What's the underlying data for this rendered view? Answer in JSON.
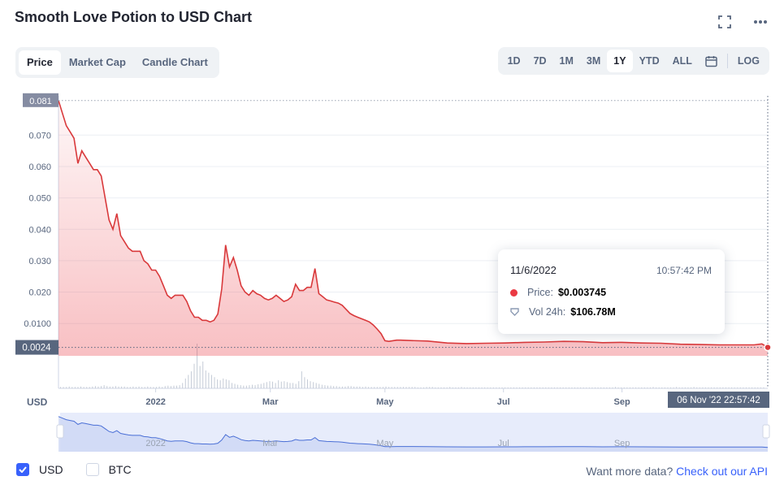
{
  "title": "Smooth Love Potion to USD Chart",
  "icons": {
    "fullscreen": "fullscreen-icon",
    "more": "more-icon",
    "calendar": "calendar-icon"
  },
  "view_tabs": [
    {
      "label": "Price",
      "active": true
    },
    {
      "label": "Market Cap",
      "active": false
    },
    {
      "label": "Candle Chart",
      "active": false
    }
  ],
  "range_tabs": [
    {
      "label": "1D",
      "active": false
    },
    {
      "label": "7D",
      "active": false
    },
    {
      "label": "1M",
      "active": false
    },
    {
      "label": "3M",
      "active": false
    },
    {
      "label": "1Y",
      "active": true
    },
    {
      "label": "YTD",
      "active": false
    },
    {
      "label": "ALL",
      "active": false
    }
  ],
  "log_label": "LOG",
  "tooltip": {
    "date": "11/6/2022",
    "time": "10:57:42 PM",
    "price_label": "Price:",
    "price_value": "$0.003745",
    "volume_label": "Vol 24h:",
    "volume_value": "$106.78M"
  },
  "bottom": {
    "currencies": [
      {
        "label": "USD",
        "checked": true
      },
      {
        "label": "BTC",
        "checked": false
      }
    ],
    "more_text": "Want more data?",
    "more_link": "Check out our API"
  },
  "colors": {
    "line": "#d9393b",
    "accent": "#3861fb",
    "navigator": "#4a6fd6"
  },
  "chart_data": {
    "type": "area",
    "currency_label": "USD",
    "x_ticks": [
      "2022",
      "Mar",
      "May",
      "Jul",
      "Sep"
    ],
    "y_ticks": [
      "0.0100",
      "0.020",
      "0.030",
      "0.040",
      "0.050",
      "0.060",
      "0.070"
    ],
    "y_tick_values": [
      0.01,
      0.02,
      0.03,
      0.04,
      0.05,
      0.06,
      0.07
    ],
    "max_label": "0.081",
    "current_label": "0.0024",
    "crosshair_label": "06 Nov '22   22:57:42",
    "ylim": [
      -0.0003,
      0.0825
    ],
    "xlim": [
      0,
      365
    ],
    "x_tick_days": [
      50,
      109,
      168,
      229,
      290
    ],
    "series": [
      {
        "x": [
          0,
          2,
          4,
          6,
          8,
          10,
          12,
          14,
          16,
          18,
          20,
          22,
          24,
          26,
          28,
          30,
          32,
          34,
          36,
          38,
          40,
          42,
          44,
          46,
          48,
          50,
          52,
          54,
          56,
          58,
          60,
          62,
          64,
          66,
          68,
          70,
          72,
          74,
          76,
          78,
          80,
          82,
          84,
          86,
          88,
          90,
          92,
          94,
          96,
          98,
          100,
          102,
          104,
          106,
          108,
          110,
          112,
          114,
          116,
          118,
          120,
          122,
          124,
          126,
          128,
          130,
          132,
          134,
          136,
          138,
          140,
          142,
          144,
          146,
          148,
          150,
          152,
          154,
          156,
          158,
          160,
          162,
          164,
          166,
          168,
          170,
          172,
          174,
          176,
          180,
          190,
          200,
          210,
          220,
          230,
          240,
          250,
          260,
          270,
          280,
          290,
          300,
          310,
          320,
          330,
          340,
          350,
          358,
          362,
          365
        ],
        "values": [
          0.081,
          0.077,
          0.073,
          0.071,
          0.069,
          0.061,
          0.065,
          0.063,
          0.061,
          0.059,
          0.059,
          0.057,
          0.05,
          0.043,
          0.04,
          0.045,
          0.038,
          0.036,
          0.034,
          0.033,
          0.033,
          0.033,
          0.03,
          0.029,
          0.027,
          0.027,
          0.025,
          0.022,
          0.019,
          0.018,
          0.019,
          0.019,
          0.019,
          0.017,
          0.014,
          0.012,
          0.012,
          0.011,
          0.011,
          0.0105,
          0.011,
          0.013,
          0.021,
          0.035,
          0.028,
          0.031,
          0.027,
          0.022,
          0.02,
          0.019,
          0.0205,
          0.0195,
          0.019,
          0.018,
          0.0175,
          0.018,
          0.019,
          0.018,
          0.017,
          0.0175,
          0.0185,
          0.0225,
          0.0205,
          0.0205,
          0.0215,
          0.0215,
          0.0275,
          0.0195,
          0.0185,
          0.0175,
          0.0172,
          0.0168,
          0.0165,
          0.0158,
          0.0145,
          0.0132,
          0.0125,
          0.012,
          0.0115,
          0.011,
          0.0105,
          0.0095,
          0.0082,
          0.0068,
          0.0045,
          0.0043,
          0.0045,
          0.0047,
          0.0047,
          0.0046,
          0.0044,
          0.0038,
          0.0036,
          0.0037,
          0.0038,
          0.004,
          0.0041,
          0.0043,
          0.0042,
          0.0039,
          0.004,
          0.0038,
          0.0037,
          0.0034,
          0.0033,
          0.0032,
          0.0032,
          0.0032,
          0.0035,
          0.0024
        ]
      }
    ],
    "volume": [
      0.03,
      0.03,
      0.03,
      0.04,
      0.03,
      0.03,
      0.03,
      0.04,
      0.03,
      0.03,
      0.03,
      0.04,
      0.05,
      0.04,
      0.05,
      0.07,
      0.05,
      0.04,
      0.04,
      0.05,
      0.04,
      0.04,
      0.04,
      0.03,
      0.03,
      0.04,
      0.03,
      0.04,
      0.03,
      0.03,
      0.04,
      0.03,
      0.03,
      0.03,
      0.04,
      0.03,
      0.05,
      0.06,
      0.05,
      0.06,
      0.06,
      0.07,
      0.12,
      0.22,
      0.3,
      0.38,
      0.55,
      1.0,
      0.5,
      0.6,
      0.4,
      0.35,
      0.3,
      0.25,
      0.2,
      0.18,
      0.22,
      0.2,
      0.18,
      0.12,
      0.1,
      0.08,
      0.07,
      0.06,
      0.06,
      0.07,
      0.08,
      0.07,
      0.09,
      0.1,
      0.12,
      0.14,
      0.16,
      0.15,
      0.12,
      0.18,
      0.15,
      0.16,
      0.14,
      0.12,
      0.12,
      0.1,
      0.16,
      0.38,
      0.25,
      0.2,
      0.16,
      0.14,
      0.12,
      0.1,
      0.08,
      0.07,
      0.06,
      0.06,
      0.05,
      0.05,
      0.04,
      0.04,
      0.04,
      0.05,
      0.05,
      0.04,
      0.04,
      0.04,
      0.03,
      0.04,
      0.03,
      0.03,
      0.03,
      0.03,
      0.03,
      0.03,
      0.04,
      0.03,
      0.03,
      0.03,
      0.03,
      0.03,
      0.03,
      0.03,
      0.03,
      0.03,
      0.03,
      0.02,
      0.02,
      0.02,
      0.03,
      0.03,
      0.03,
      0.02,
      0.02,
      0.02,
      0.02,
      0.02,
      0.03,
      0.02,
      0.02,
      0.02,
      0.03,
      0.02,
      0.02,
      0.02,
      0.02,
      0.02,
      0.02,
      0.02,
      0.02,
      0.02,
      0.02,
      0.02,
      0.02,
      0.02,
      0.02,
      0.02,
      0.02,
      0.02,
      0.02,
      0.02,
      0.02,
      0.02,
      0.02,
      0.02,
      0.02,
      0.02,
      0.02,
      0.02,
      0.02,
      0.02,
      0.02,
      0.02,
      0.02,
      0.02,
      0.02,
      0.02,
      0.02,
      0.02,
      0.02,
      0.02,
      0.02,
      0.02,
      0.02,
      0.02,
      0.02,
      0.02,
      0.02,
      0.02,
      0.02,
      0.02,
      0.02,
      0.02,
      0.02,
      0.03,
      0.02,
      0.02,
      0.02,
      0.02,
      0.02,
      0.02,
      0.02,
      0.02,
      0.02,
      0.02,
      0.02,
      0.02,
      0.03,
      0.02,
      0.02,
      0.02,
      0.02,
      0.02,
      0.02,
      0.02,
      0.03,
      0.02,
      0.02,
      0.02,
      0.02,
      0.02,
      0.03,
      0.02,
      0.02,
      0.02,
      0.02,
      0.02,
      0.02,
      0.02,
      0.02,
      0.02,
      0.02,
      0.02,
      0.02,
      0.02,
      0.02,
      0.02,
      0.02,
      0.02,
      0.02,
      0.02,
      0.02,
      0.02,
      0.02,
      0.02,
      0.02
    ]
  }
}
